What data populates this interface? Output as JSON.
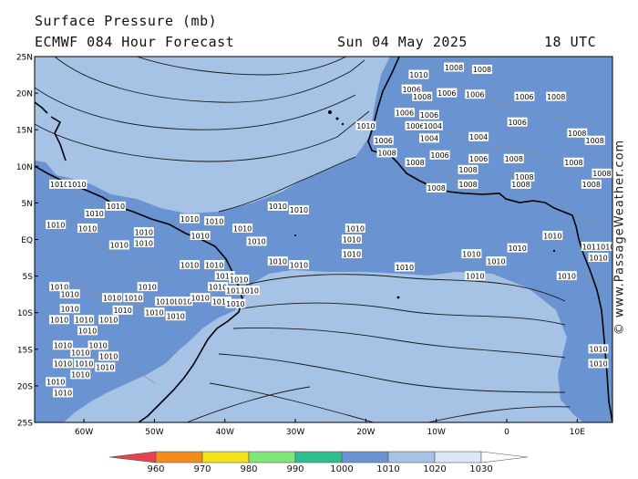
{
  "header": {
    "title": "Surface Pressure (mb)",
    "model": "ECMWF 084 Hour Forecast",
    "date": "Sun 04 May 2025",
    "time": "18 UTC"
  },
  "credit": "© www.PassageWeather.com",
  "map": {
    "lat_labels": [
      "25N",
      "20N",
      "15N",
      "10N",
      "5N",
      "EQ",
      "5S",
      "10S",
      "15S",
      "20S",
      "25S"
    ],
    "lon_labels": [
      "60W",
      "50W",
      "40W",
      "30W",
      "20W",
      "10W",
      "0",
      "10E"
    ],
    "isobar_labels": [
      {
        "text": "1010",
        "lon": -12.5,
        "lat": 22.5
      },
      {
        "text": "1008",
        "lon": -7.5,
        "lat": 23.5
      },
      {
        "text": "1008",
        "lon": -3.5,
        "lat": 23.2
      },
      {
        "text": "1006",
        "lon": -13.5,
        "lat": 20.5
      },
      {
        "text": "1006",
        "lon": -8.5,
        "lat": 20.0
      },
      {
        "text": "1008",
        "lon": -12.0,
        "lat": 19.5
      },
      {
        "text": "1006",
        "lon": -4.5,
        "lat": 19.8
      },
      {
        "text": "1006",
        "lon": 2.5,
        "lat": 19.5
      },
      {
        "text": "1008",
        "lon": 7.0,
        "lat": 19.5
      },
      {
        "text": "1006",
        "lon": -14.5,
        "lat": 17.3
      },
      {
        "text": "1006",
        "lon": -11.0,
        "lat": 17.0
      },
      {
        "text": "1010",
        "lon": -20.0,
        "lat": 15.5
      },
      {
        "text": "1006",
        "lon": -13.0,
        "lat": 15.5
      },
      {
        "text": "1004",
        "lon": -10.5,
        "lat": 15.5
      },
      {
        "text": "1006",
        "lon": 1.5,
        "lat": 16.0
      },
      {
        "text": "1008",
        "lon": 10.0,
        "lat": 14.5
      },
      {
        "text": "1006",
        "lon": -17.5,
        "lat": 13.5
      },
      {
        "text": "1004",
        "lon": -11.0,
        "lat": 13.8
      },
      {
        "text": "1004",
        "lon": -4.0,
        "lat": 14.0
      },
      {
        "text": "1008",
        "lon": 12.5,
        "lat": 13.5
      },
      {
        "text": "1008",
        "lon": -17.0,
        "lat": 11.8
      },
      {
        "text": "1006",
        "lon": -9.5,
        "lat": 11.5
      },
      {
        "text": "1006",
        "lon": -4.0,
        "lat": 11.0
      },
      {
        "text": "1008",
        "lon": 1.0,
        "lat": 11.0
      },
      {
        "text": "1008",
        "lon": -13.0,
        "lat": 10.5
      },
      {
        "text": "1008",
        "lon": -5.5,
        "lat": 9.5
      },
      {
        "text": "1008",
        "lon": 9.5,
        "lat": 10.5
      },
      {
        "text": "1008",
        "lon": 2.5,
        "lat": 8.5
      },
      {
        "text": "1008",
        "lon": 13.5,
        "lat": 9.0
      },
      {
        "text": "1008",
        "lon": -5.5,
        "lat": 7.5
      },
      {
        "text": "1008",
        "lon": -10.0,
        "lat": 7.0
      },
      {
        "text": "1008",
        "lon": 2.0,
        "lat": 7.5
      },
      {
        "text": "1008",
        "lon": 12.0,
        "lat": 7.5
      },
      {
        "text": "1010",
        "lon": -63.5,
        "lat": 7.5
      },
      {
        "text": "1010",
        "lon": -61.0,
        "lat": 7.5
      },
      {
        "text": "1010",
        "lon": -55.5,
        "lat": 4.5
      },
      {
        "text": "1010",
        "lon": -58.5,
        "lat": 3.5
      },
      {
        "text": "1010",
        "lon": -45.0,
        "lat": 2.8
      },
      {
        "text": "1010",
        "lon": -41.5,
        "lat": 2.5
      },
      {
        "text": "1010",
        "lon": -37.5,
        "lat": 1.5
      },
      {
        "text": "1010",
        "lon": -32.5,
        "lat": 4.5
      },
      {
        "text": "1010",
        "lon": -29.5,
        "lat": 4.0
      },
      {
        "text": "1010",
        "lon": -64.0,
        "lat": 2.0
      },
      {
        "text": "1010",
        "lon": -59.5,
        "lat": 1.5
      },
      {
        "text": "1010",
        "lon": -51.5,
        "lat": 1.0
      },
      {
        "text": "1010",
        "lon": -43.5,
        "lat": 0.5
      },
      {
        "text": "1010",
        "lon": -21.5,
        "lat": 1.5
      },
      {
        "text": "1010",
        "lon": -22.0,
        "lat": 0.0
      },
      {
        "text": "1010",
        "lon": 6.5,
        "lat": 0.5
      },
      {
        "text": "1010",
        "lon": -35.5,
        "lat": -0.3
      },
      {
        "text": "1010",
        "lon": -55.0,
        "lat": -0.8
      },
      {
        "text": "1010",
        "lon": -51.5,
        "lat": -0.5
      },
      {
        "text": "1010",
        "lon": -22.0,
        "lat": -2.0
      },
      {
        "text": "1010",
        "lon": 1.5,
        "lat": -1.2
      },
      {
        "text": "1010",
        "lon": -5.0,
        "lat": -2.0
      },
      {
        "text": "1010",
        "lon": -1.5,
        "lat": -3.0
      },
      {
        "text": "1010",
        "lon": -32.5,
        "lat": -3.0
      },
      {
        "text": "1010",
        "lon": -29.5,
        "lat": -3.5
      },
      {
        "text": "1010",
        "lon": -14.5,
        "lat": -3.8
      },
      {
        "text": "1010",
        "lon": -4.5,
        "lat": -5.0
      },
      {
        "text": "1010",
        "lon": -45.0,
        "lat": -3.5
      },
      {
        "text": "1010",
        "lon": -41.5,
        "lat": -3.5
      },
      {
        "text": "1010",
        "lon": -40.0,
        "lat": -5.0
      },
      {
        "text": "1010",
        "lon": -38.0,
        "lat": -5.5
      },
      {
        "text": "1010",
        "lon": -63.5,
        "lat": -6.5
      },
      {
        "text": "1010",
        "lon": -62.0,
        "lat": -7.5
      },
      {
        "text": "1010",
        "lon": -51.0,
        "lat": -6.5
      },
      {
        "text": "1010",
        "lon": -41.0,
        "lat": -6.5
      },
      {
        "text": "1010",
        "lon": -38.5,
        "lat": -7.0
      },
      {
        "text": "1010",
        "lon": -36.5,
        "lat": -7.0
      },
      {
        "text": "1010",
        "lon": -40.5,
        "lat": -8.5
      },
      {
        "text": "1010",
        "lon": -38.5,
        "lat": -8.8
      },
      {
        "text": "1010",
        "lon": -46.0,
        "lat": -8.5
      },
      {
        "text": "1010",
        "lon": -43.5,
        "lat": -8.0
      },
      {
        "text": "1010",
        "lon": -56.0,
        "lat": -8.0
      },
      {
        "text": "1010",
        "lon": -53.0,
        "lat": -8.0
      },
      {
        "text": "1010",
        "lon": -48.5,
        "lat": -8.5
      },
      {
        "text": "1010",
        "lon": 8.5,
        "lat": -5.0
      },
      {
        "text": "1010",
        "lon": -62.0,
        "lat": -9.5
      },
      {
        "text": "1010",
        "lon": -54.5,
        "lat": -9.7
      },
      {
        "text": "1010",
        "lon": -50.0,
        "lat": -10.0
      },
      {
        "text": "1010",
        "lon": -47.0,
        "lat": -10.5
      },
      {
        "text": "1010",
        "lon": -63.5,
        "lat": -11.0
      },
      {
        "text": "1010",
        "lon": -60.0,
        "lat": -11.0
      },
      {
        "text": "1010",
        "lon": -56.5,
        "lat": -11.0
      },
      {
        "text": "1010",
        "lon": -59.5,
        "lat": -12.5
      },
      {
        "text": "1010",
        "lon": -63.0,
        "lat": -14.5
      },
      {
        "text": "1010",
        "lon": -58.0,
        "lat": -14.5
      },
      {
        "text": "1010",
        "lon": -60.5,
        "lat": -15.5
      },
      {
        "text": "1010",
        "lon": -56.5,
        "lat": -16.0
      },
      {
        "text": "1010",
        "lon": -63.0,
        "lat": -17.0
      },
      {
        "text": "1010",
        "lon": -60.0,
        "lat": -17.0
      },
      {
        "text": "1010",
        "lon": -57.0,
        "lat": -17.5
      },
      {
        "text": "1010",
        "lon": -60.5,
        "lat": -18.5
      },
      {
        "text": "1010",
        "lon": -64.0,
        "lat": -19.5
      },
      {
        "text": "1010",
        "lon": -63.0,
        "lat": -21.0
      },
      {
        "text": "1010",
        "lon": 13.0,
        "lat": -15.0
      },
      {
        "text": "1010",
        "lon": 13.0,
        "lat": -17.0
      },
      {
        "text": "1010",
        "lon": 12.0,
        "lat": -1.0
      },
      {
        "text": "1010",
        "lon": 14.0,
        "lat": -1.0
      },
      {
        "text": "1010",
        "lon": 13.0,
        "lat": -2.5
      }
    ]
  },
  "legend": {
    "colors": [
      "#e8434c",
      "#f28c1c",
      "#f6e21a",
      "#7ee67a",
      "#2fbf8f",
      "#6a93d2",
      "#a6c2e4",
      "#dbe7f5",
      "#ffffff"
    ],
    "labels": [
      "960",
      "970",
      "980",
      "990",
      "1000",
      "1010",
      "1020",
      "1030"
    ]
  },
  "colors": {
    "ocean_high": "#a6c2e4",
    "low_1010": "#6a93d2",
    "land_outline": "#000000",
    "border": "#8c8c8c"
  }
}
